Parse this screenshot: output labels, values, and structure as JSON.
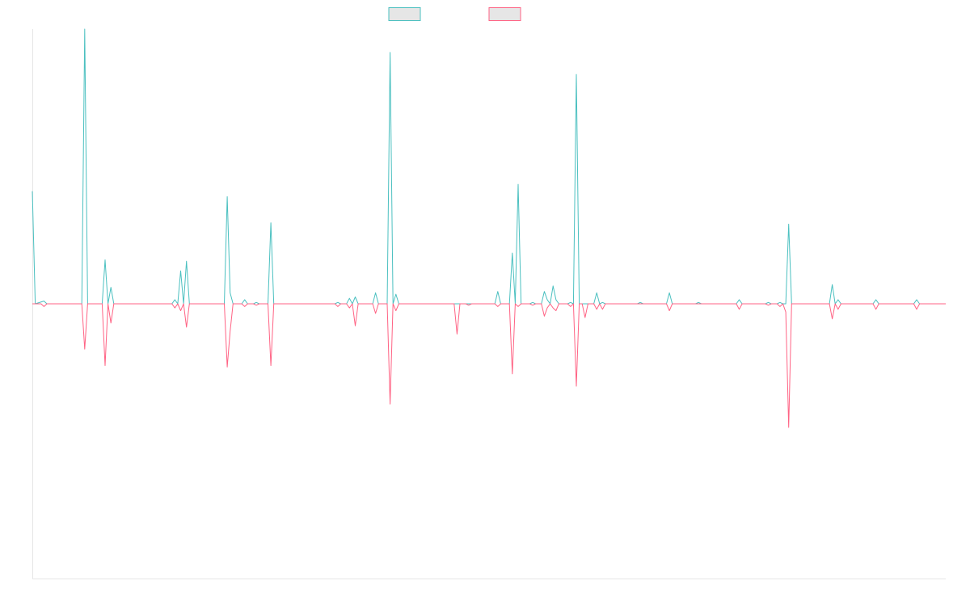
{
  "chart_data": {
    "type": "line",
    "title": "",
    "xlabel": "",
    "ylabel": "",
    "ylim": [
      -1,
      1
    ],
    "grid": false,
    "legend": {
      "position": "top-center"
    },
    "series": [
      {
        "color": "#4bc0c0",
        "values": [
          [
            0,
            0.41
          ],
          [
            1,
            0
          ],
          [
            4,
            0.01
          ],
          [
            5,
            0
          ],
          [
            17,
            0
          ],
          [
            18,
            1.0
          ],
          [
            19,
            0
          ],
          [
            24,
            0
          ],
          [
            25,
            0.16
          ],
          [
            26,
            0
          ],
          [
            27,
            0.06
          ],
          [
            28,
            0
          ],
          [
            48,
            0
          ],
          [
            49,
            0.015
          ],
          [
            50,
            0
          ],
          [
            51,
            0.12
          ],
          [
            52,
            0
          ],
          [
            53,
            0.155
          ],
          [
            54,
            0
          ],
          [
            66,
            0
          ],
          [
            67,
            0.39
          ],
          [
            68,
            0.04
          ],
          [
            69,
            0
          ],
          [
            72,
            0
          ],
          [
            73,
            0.015
          ],
          [
            74,
            0
          ],
          [
            76,
            0
          ],
          [
            77,
            0.005
          ],
          [
            78,
            0
          ],
          [
            81,
            0
          ],
          [
            82,
            0.295
          ],
          [
            83,
            0
          ],
          [
            104,
            0
          ],
          [
            105,
            0.005
          ],
          [
            106,
            0
          ],
          [
            108,
            0
          ],
          [
            109,
            0.02
          ],
          [
            110,
            0
          ],
          [
            111,
            0.025
          ],
          [
            112,
            0
          ],
          [
            117,
            0
          ],
          [
            118,
            0.04
          ],
          [
            119,
            0
          ],
          [
            122,
            0
          ],
          [
            123,
            0.915
          ],
          [
            124,
            0
          ],
          [
            125,
            0.035
          ],
          [
            126,
            0
          ],
          [
            150,
            0
          ],
          [
            151,
            0
          ],
          [
            152,
            0
          ],
          [
            153,
            0
          ],
          [
            159,
            0
          ],
          [
            160,
            0.045
          ],
          [
            161,
            0
          ],
          [
            164,
            0
          ],
          [
            165,
            0.185
          ],
          [
            166,
            0
          ],
          [
            167,
            0.435
          ],
          [
            168,
            0
          ],
          [
            171,
            0
          ],
          [
            172,
            0.005
          ],
          [
            173,
            0
          ],
          [
            175,
            0
          ],
          [
            176,
            0.045
          ],
          [
            177,
            0.015
          ],
          [
            178,
            0
          ],
          [
            179,
            0.065
          ],
          [
            180,
            0.015
          ],
          [
            181,
            0
          ],
          [
            184,
            0
          ],
          [
            185,
            0.005
          ],
          [
            186,
            0
          ],
          [
            187,
            0.835
          ],
          [
            188,
            0
          ],
          [
            193,
            0
          ],
          [
            194,
            0.04
          ],
          [
            195,
            0
          ],
          [
            196,
            0.005
          ],
          [
            197,
            0
          ],
          [
            208,
            0
          ],
          [
            209,
            0.005
          ],
          [
            210,
            0
          ],
          [
            218,
            0
          ],
          [
            219,
            0.04
          ],
          [
            220,
            0
          ],
          [
            228,
            0
          ],
          [
            229,
            0.005
          ],
          [
            230,
            0
          ],
          [
            242,
            0
          ],
          [
            243,
            0.015
          ],
          [
            244,
            0
          ],
          [
            252,
            0
          ],
          [
            253,
            0.005
          ],
          [
            254,
            0
          ],
          [
            256,
            0
          ],
          [
            257,
            0.005
          ],
          [
            258,
            0
          ],
          [
            259,
            0
          ],
          [
            260,
            0.29
          ],
          [
            261,
            0
          ],
          [
            274,
            0
          ],
          [
            275,
            0.07
          ],
          [
            276,
            0
          ],
          [
            277,
            0.015
          ],
          [
            278,
            0
          ],
          [
            289,
            0
          ],
          [
            290,
            0.015
          ],
          [
            291,
            0
          ],
          [
            303,
            0
          ],
          [
            304,
            0.015
          ],
          [
            305,
            0
          ],
          [
            314,
            0
          ]
        ]
      },
      {
        "color": "#ff6384",
        "values": [
          [
            0,
            0
          ],
          [
            3,
            0
          ],
          [
            4,
            -0.01
          ],
          [
            5,
            0
          ],
          [
            17,
            0
          ],
          [
            18,
            -0.165
          ],
          [
            19,
            0
          ],
          [
            24,
            0
          ],
          [
            25,
            -0.225
          ],
          [
            26,
            0
          ],
          [
            27,
            -0.07
          ],
          [
            28,
            0
          ],
          [
            48,
            0
          ],
          [
            49,
            -0.015
          ],
          [
            50,
            0
          ],
          [
            51,
            -0.025
          ],
          [
            52,
            0
          ],
          [
            53,
            -0.085
          ],
          [
            54,
            0
          ],
          [
            66,
            0
          ],
          [
            67,
            -0.23
          ],
          [
            68,
            -0.1
          ],
          [
            69,
            0
          ],
          [
            72,
            0
          ],
          [
            73,
            -0.01
          ],
          [
            74,
            0
          ],
          [
            76,
            0
          ],
          [
            77,
            -0.005
          ],
          [
            78,
            0
          ],
          [
            81,
            0
          ],
          [
            82,
            -0.225
          ],
          [
            83,
            0
          ],
          [
            104,
            0
          ],
          [
            105,
            -0.01
          ],
          [
            106,
            0
          ],
          [
            108,
            0
          ],
          [
            109,
            -0.015
          ],
          [
            110,
            0
          ],
          [
            111,
            -0.08
          ],
          [
            112,
            0
          ],
          [
            117,
            0
          ],
          [
            118,
            -0.035
          ],
          [
            119,
            0
          ],
          [
            122,
            0
          ],
          [
            123,
            -0.365
          ],
          [
            124,
            0
          ],
          [
            125,
            -0.025
          ],
          [
            126,
            0
          ],
          [
            145,
            0
          ],
          [
            146,
            -0.11
          ],
          [
            147,
            0
          ],
          [
            149,
            0
          ],
          [
            150,
            -0.005
          ],
          [
            151,
            0
          ],
          [
            159,
            0
          ],
          [
            160,
            -0.01
          ],
          [
            161,
            0
          ],
          [
            164,
            0
          ],
          [
            165,
            -0.255
          ],
          [
            166,
            0
          ],
          [
            167,
            -0.01
          ],
          [
            168,
            0
          ],
          [
            171,
            0
          ],
          [
            172,
            -0.005
          ],
          [
            173,
            0
          ],
          [
            175,
            0
          ],
          [
            176,
            -0.045
          ],
          [
            177,
            -0.015
          ],
          [
            178,
            0
          ],
          [
            179,
            -0.015
          ],
          [
            180,
            -0.025
          ],
          [
            181,
            0
          ],
          [
            184,
            0
          ],
          [
            185,
            -0.01
          ],
          [
            186,
            0
          ],
          [
            187,
            -0.3
          ],
          [
            188,
            0
          ],
          [
            189,
            0
          ],
          [
            190,
            -0.05
          ],
          [
            191,
            0
          ],
          [
            193,
            0
          ],
          [
            194,
            -0.02
          ],
          [
            195,
            0
          ],
          [
            196,
            -0.02
          ],
          [
            197,
            0
          ],
          [
            218,
            0
          ],
          [
            219,
            -0.025
          ],
          [
            220,
            0
          ],
          [
            242,
            0
          ],
          [
            243,
            -0.02
          ],
          [
            244,
            0
          ],
          [
            252,
            0
          ],
          [
            253,
            -0.005
          ],
          [
            254,
            0
          ],
          [
            256,
            0
          ],
          [
            257,
            -0.01
          ],
          [
            258,
            0
          ],
          [
            259,
            -0.03
          ],
          [
            260,
            -0.45
          ],
          [
            261,
            0
          ],
          [
            274,
            0
          ],
          [
            275,
            -0.055
          ],
          [
            276,
            0
          ],
          [
            277,
            -0.02
          ],
          [
            278,
            0
          ],
          [
            289,
            0
          ],
          [
            290,
            -0.02
          ],
          [
            291,
            0
          ],
          [
            303,
            0
          ],
          [
            304,
            -0.02
          ],
          [
            305,
            0
          ],
          [
            314,
            0
          ]
        ]
      }
    ]
  }
}
